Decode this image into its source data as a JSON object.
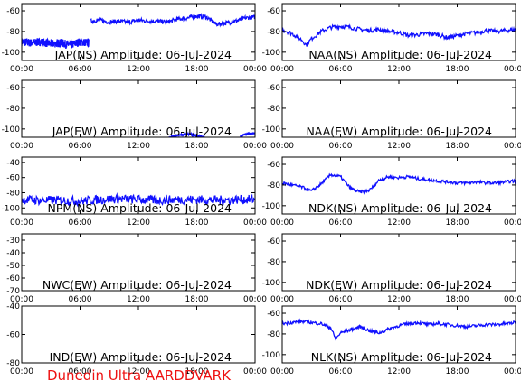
{
  "colors": {
    "trace": "#1010ff",
    "axis": "#000000",
    "credit": "#ee1111"
  },
  "chart_data": [
    {
      "type": "line",
      "title": "JAP(NS) Amplitude: 06-Jul-2024",
      "ylim": [
        -108,
        -53
      ],
      "yticks": [
        -100,
        -80,
        -60
      ],
      "xlim": [
        0,
        24
      ],
      "xticks": [
        "00:00",
        "06:00",
        "12:00",
        "18:00",
        "00:00"
      ],
      "grid": false,
      "segments": [
        {
          "x": [
            0,
            1,
            2,
            3,
            4,
            5,
            6,
            6.9
          ],
          "y": [
            -90,
            -91,
            -90,
            -92,
            -91,
            -93,
            -90,
            -91
          ],
          "noise": 8
        },
        {
          "x": [
            7.1,
            8,
            9,
            10,
            11,
            12,
            13,
            14,
            15,
            16,
            17,
            18,
            19,
            20,
            21,
            22,
            23,
            24
          ],
          "y": [
            -70,
            -69,
            -71,
            -70,
            -71,
            -69,
            -70,
            -70,
            -71,
            -68,
            -67,
            -65,
            -66,
            -73,
            -72,
            -70,
            -67,
            -66
          ],
          "noise": 4
        }
      ]
    },
    {
      "type": "line",
      "title": "NAA(NS) Amplitude: 06-Jul-2024",
      "ylim": [
        -108,
        -53
      ],
      "yticks": [
        -100,
        -80,
        -60
      ],
      "xlim": [
        0,
        24
      ],
      "xticks": [
        "00:00",
        "06:00",
        "12:00",
        "18:00",
        "00:00"
      ],
      "grid": false,
      "segments": [
        {
          "x": [
            0,
            1,
            2,
            2.5,
            3,
            4,
            5,
            6,
            7,
            8,
            9,
            10,
            11,
            12,
            13,
            14,
            15,
            16,
            17,
            18,
            19,
            20,
            21,
            22,
            23,
            24
          ],
          "y": [
            -78,
            -82,
            -88,
            -93,
            -87,
            -80,
            -76,
            -75,
            -76,
            -78,
            -79,
            -78,
            -80,
            -81,
            -84,
            -83,
            -82,
            -83,
            -86,
            -84,
            -82,
            -81,
            -79,
            -80,
            -79,
            -78
          ],
          "noise": 4
        }
      ]
    },
    {
      "type": "line",
      "title": "JAP(EW) Amplitude: 06-Jul-2024",
      "ylim": [
        -108,
        -53
      ],
      "yticks": [
        -100,
        -80,
        -60
      ],
      "xlim": [
        0,
        24
      ],
      "xticks": [
        "00:00",
        "06:00",
        "12:00",
        "18:00",
        "00:00"
      ],
      "grid": false,
      "segments": [
        {
          "x": [
            15,
            16,
            17,
            18,
            19
          ],
          "y": [
            -109,
            -106,
            -105,
            -106,
            -109
          ],
          "noise": 2
        },
        {
          "x": [
            22.5,
            23,
            24
          ],
          "y": [
            -107,
            -105,
            -104
          ],
          "noise": 2
        }
      ]
    },
    {
      "type": "line",
      "title": "NAA(EW) Amplitude: 06-Jul-2024",
      "ylim": [
        -108,
        -53
      ],
      "yticks": [
        -100,
        -80,
        -60
      ],
      "xlim": [
        0,
        24
      ],
      "xticks": [
        "00:00",
        "06:00",
        "12:00",
        "18:00",
        "00:00"
      ],
      "grid": false,
      "segments": []
    },
    {
      "type": "line",
      "title": "NPM(NS) Amplitude: 06-Jul-2024",
      "ylim": [
        -108,
        -33
      ],
      "yticks": [
        -100,
        -80,
        -60,
        -40
      ],
      "xlim": [
        0,
        24
      ],
      "xticks": [
        "00:00",
        "06:00",
        "12:00",
        "18:00",
        "00:00"
      ],
      "grid": false,
      "segments": [
        {
          "x": [
            0,
            2,
            4,
            6,
            8,
            10,
            12,
            14,
            16,
            18,
            20,
            22,
            24
          ],
          "y": [
            -89,
            -90,
            -90,
            -91,
            -89,
            -88,
            -89,
            -90,
            -89,
            -89,
            -90,
            -89,
            -89
          ],
          "noise": 12
        }
      ]
    },
    {
      "type": "line",
      "title": "NDK(NS) Amplitude: 06-Jul-2024",
      "ylim": [
        -108,
        -53
      ],
      "yticks": [
        -100,
        -80,
        -60
      ],
      "xlim": [
        0,
        24
      ],
      "xticks": [
        "00:00",
        "06:00",
        "12:00",
        "18:00",
        "00:00"
      ],
      "grid": false,
      "segments": [
        {
          "x": [
            0,
            1,
            2,
            3,
            4,
            5,
            6,
            7,
            8,
            9,
            10,
            11,
            12,
            13,
            14,
            15,
            16,
            17,
            18,
            19,
            20,
            21,
            22,
            23,
            24
          ],
          "y": [
            -78,
            -80,
            -82,
            -86,
            -79,
            -70,
            -72,
            -83,
            -87,
            -85,
            -75,
            -72,
            -73,
            -72,
            -74,
            -75,
            -76,
            -77,
            -78,
            -78,
            -77,
            -78,
            -78,
            -77,
            -76
          ],
          "noise": 3
        }
      ]
    },
    {
      "type": "line",
      "title": "NWC(EW) Amplitude: 06-Jul-2024",
      "ylim": [
        -70,
        -25
      ],
      "yticks": [
        -70,
        -60,
        -50,
        -40,
        -30
      ],
      "xlim": [
        0,
        24
      ],
      "xticks": [
        "00:00",
        "06:00",
        "12:00",
        "18:00",
        "00:00"
      ],
      "grid": false,
      "segments": []
    },
    {
      "type": "line",
      "title": "NDK(EW) Amplitude: 06-Jul-2024",
      "ylim": [
        -108,
        -53
      ],
      "yticks": [
        -100,
        -80,
        -60
      ],
      "xlim": [
        0,
        24
      ],
      "xticks": [
        "00:00",
        "06:00",
        "12:00",
        "18:00",
        "00:00"
      ],
      "grid": false,
      "segments": []
    },
    {
      "type": "line",
      "title": "IND(EW) Amplitude: 06-Jul-2024",
      "ylim": [
        -80,
        -40
      ],
      "yticks": [
        -80,
        -60,
        -40
      ],
      "xlim": [
        0,
        24
      ],
      "xticks": [
        "00:00",
        "06:00",
        "12:00",
        "18:00",
        "00:00"
      ],
      "grid": false,
      "segments": []
    },
    {
      "type": "line",
      "title": "NLK(NS) Amplitude: 06-Jul-2024",
      "ylim": [
        -108,
        -53
      ],
      "yticks": [
        -100,
        -80,
        -60
      ],
      "xlim": [
        0,
        24
      ],
      "xticks": [
        "00:00",
        "06:00",
        "12:00",
        "18:00",
        "00:00"
      ],
      "grid": false,
      "segments": [
        {
          "x": [
            0,
            1,
            2,
            3,
            4,
            5,
            5.5,
            6,
            7,
            8,
            9,
            10,
            11,
            12,
            13,
            14,
            15,
            16,
            17,
            18,
            19,
            20,
            21,
            22,
            23,
            24
          ],
          "y": [
            -70,
            -69,
            -68,
            -69,
            -70,
            -74,
            -85,
            -79,
            -76,
            -73,
            -77,
            -79,
            -75,
            -72,
            -70,
            -69,
            -71,
            -70,
            -71,
            -72,
            -73,
            -72,
            -71,
            -71,
            -70,
            -69
          ],
          "noise": 3
        }
      ]
    }
  ],
  "footer": {
    "credit": "Dunedin Ultra AARDDVARK"
  }
}
